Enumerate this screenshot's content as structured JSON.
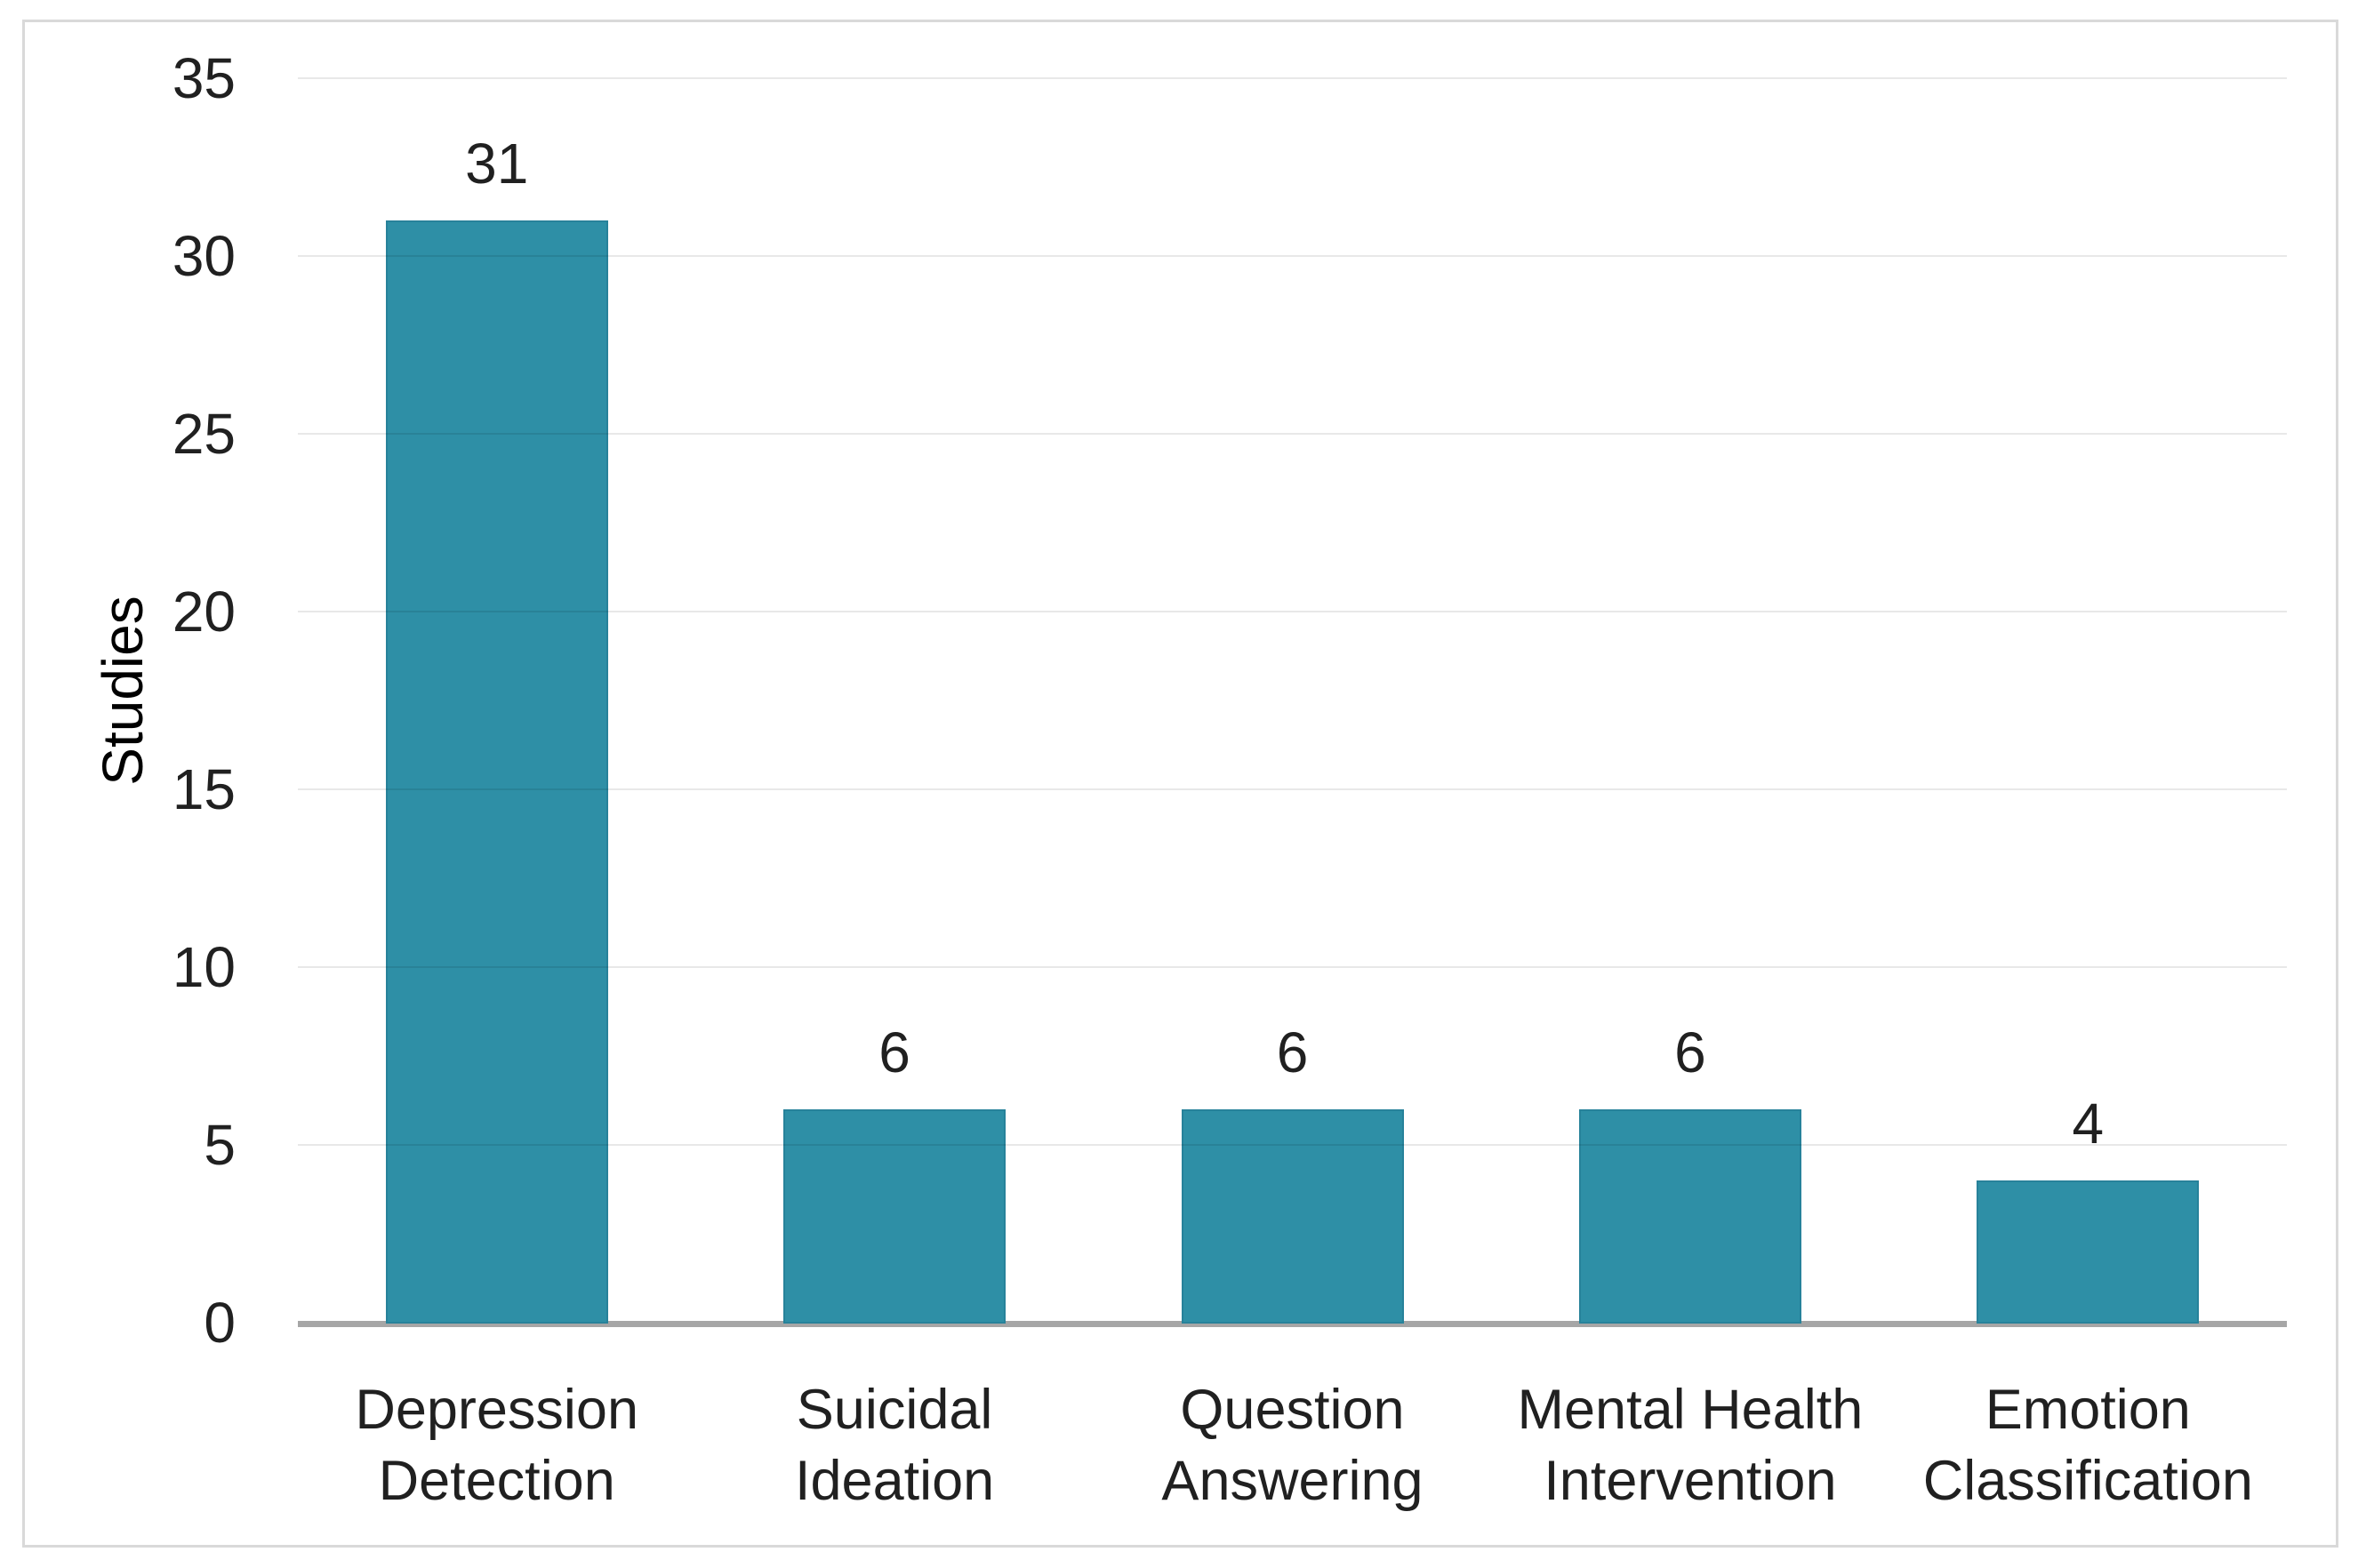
{
  "chart_data": {
    "type": "bar",
    "title": "",
    "categories": [
      "Depression\nDetection",
      "Suicidal\nIdeation",
      "Question\nAnswering",
      "Mental Health\nIntervention",
      "Emotion\nClassification"
    ],
    "values": [
      31,
      6,
      6,
      6,
      4
    ],
    "data_labels": [
      "31",
      "6",
      "6",
      "6",
      "4"
    ],
    "xlabel": "",
    "ylabel": "Studies",
    "ylim": [
      0,
      35
    ],
    "yticks": [
      0,
      5,
      10,
      15,
      20,
      25,
      30,
      35
    ],
    "grid": "horizontal",
    "legend": "none",
    "colors": {
      "bar_fill": "#2E8FA6",
      "bar_edge": "#27829a",
      "gridline": "rgba(0,0,0,0.09)",
      "axis_line": "#a6a6a6",
      "frame_border": "#d9d9d9",
      "text": "#202020"
    }
  }
}
